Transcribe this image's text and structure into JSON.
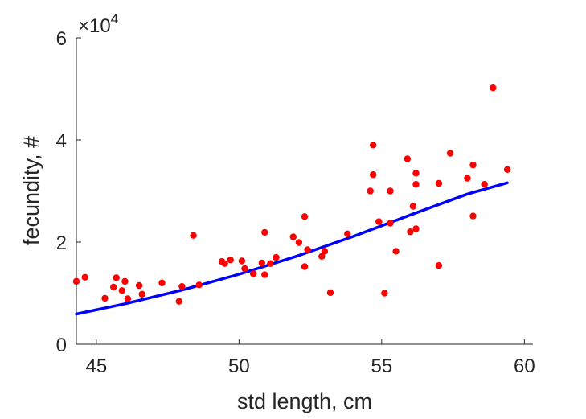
{
  "chart_data": {
    "type": "scatter",
    "title": "",
    "xlabel": "std length, cm",
    "ylabel": "fecundity, #",
    "y_multiplier_label": "×10",
    "y_multiplier_exponent": "4",
    "xlim": [
      44.3,
      60.3
    ],
    "ylim": [
      0,
      60000
    ],
    "x_ticks": [
      45,
      50,
      55,
      60
    ],
    "y_ticks": [
      0,
      20000,
      40000,
      60000
    ],
    "x_tick_labels": [
      "45",
      "50",
      "55",
      "60"
    ],
    "y_tick_labels": [
      "0",
      "2",
      "4",
      "6"
    ],
    "grid": false,
    "legend": "none",
    "series": [
      {
        "kind": "scatter",
        "color": "#ff0000",
        "points": [
          [
            44.3,
            12300
          ],
          [
            44.6,
            13100
          ],
          [
            45.3,
            9000
          ],
          [
            45.6,
            11200
          ],
          [
            45.7,
            13000
          ],
          [
            45.9,
            10500
          ],
          [
            46.0,
            12300
          ],
          [
            46.1,
            8900
          ],
          [
            46.5,
            11500
          ],
          [
            46.6,
            9800
          ],
          [
            47.3,
            12000
          ],
          [
            47.9,
            8400
          ],
          [
            48.0,
            11300
          ],
          [
            48.4,
            21300
          ],
          [
            48.6,
            11600
          ],
          [
            49.4,
            16200
          ],
          [
            49.5,
            15800
          ],
          [
            49.7,
            16500
          ],
          [
            50.1,
            16300
          ],
          [
            50.2,
            14800
          ],
          [
            50.5,
            13800
          ],
          [
            50.8,
            15900
          ],
          [
            50.9,
            13600
          ],
          [
            50.9,
            21900
          ],
          [
            51.1,
            15800
          ],
          [
            51.3,
            17000
          ],
          [
            51.9,
            21000
          ],
          [
            52.1,
            19900
          ],
          [
            52.3,
            15200
          ],
          [
            52.3,
            25000
          ],
          [
            52.4,
            18500
          ],
          [
            52.9,
            17200
          ],
          [
            53.0,
            18200
          ],
          [
            53.2,
            10100
          ],
          [
            53.8,
            21600
          ],
          [
            54.6,
            30000
          ],
          [
            54.7,
            33200
          ],
          [
            54.7,
            39000
          ],
          [
            54.9,
            24000
          ],
          [
            55.1,
            10000
          ],
          [
            55.3,
            30000
          ],
          [
            55.3,
            23700
          ],
          [
            55.5,
            18200
          ],
          [
            55.9,
            36300
          ],
          [
            56.0,
            22000
          ],
          [
            56.1,
            27000
          ],
          [
            56.2,
            22600
          ],
          [
            56.2,
            31300
          ],
          [
            56.2,
            33500
          ],
          [
            57.0,
            15400
          ],
          [
            57.0,
            31500
          ],
          [
            57.4,
            37400
          ],
          [
            58.0,
            32500
          ],
          [
            58.2,
            25100
          ],
          [
            58.2,
            35100
          ],
          [
            58.6,
            31300
          ],
          [
            58.9,
            50200
          ],
          [
            59.4,
            34200
          ]
        ]
      },
      {
        "kind": "line",
        "color": "#0000ff",
        "points": [
          [
            44.3,
            5900
          ],
          [
            46.0,
            7900
          ],
          [
            48.0,
            10600
          ],
          [
            50.0,
            13700
          ],
          [
            52.0,
            17200
          ],
          [
            54.0,
            21100
          ],
          [
            56.0,
            25300
          ],
          [
            58.0,
            29400
          ],
          [
            59.4,
            31600
          ]
        ]
      }
    ]
  }
}
